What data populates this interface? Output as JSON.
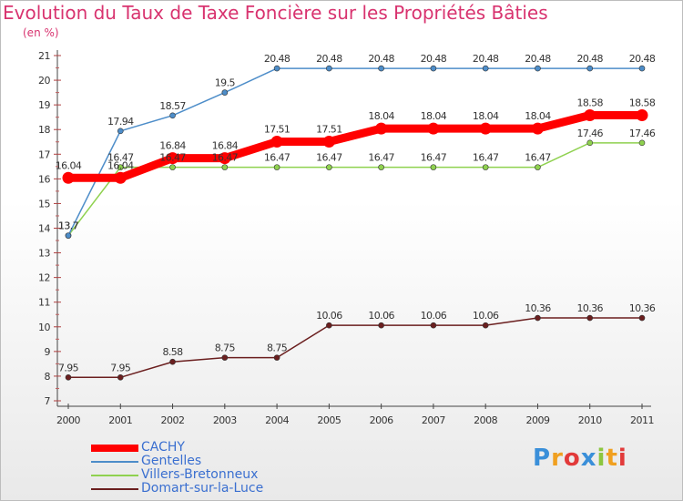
{
  "chart_data": {
    "type": "line",
    "title": "Evolution du Taux de Taxe Foncière sur les Propriétés Bâties",
    "subtitle": "(en %)",
    "x": [
      "2000",
      "2001",
      "2002",
      "2003",
      "2004",
      "2005",
      "2006",
      "2007",
      "2008",
      "2009",
      "2010",
      "2011"
    ],
    "ylim": [
      7,
      21
    ],
    "yticks": [
      7,
      8,
      9,
      10,
      11,
      12,
      13,
      14,
      15,
      16,
      17,
      18,
      19,
      20,
      21
    ],
    "grid": false,
    "legend_position": "bottom-left",
    "series": [
      {
        "name": "CACHY",
        "color": "#ff0000",
        "values": [
          16.04,
          16.04,
          16.84,
          16.84,
          17.51,
          17.51,
          18.04,
          18.04,
          18.04,
          18.04,
          18.58,
          18.58
        ],
        "labels": [
          "16.04",
          "16.04",
          "16.84",
          "16.84",
          "17.51",
          "17.51",
          "18.04",
          "18.04",
          "18.04",
          "18.04",
          "18.58",
          "18.58"
        ]
      },
      {
        "name": "Gentelles",
        "color": "#4d8dc9",
        "values": [
          13.7,
          17.94,
          18.57,
          19.5,
          20.48,
          20.48,
          20.48,
          20.48,
          20.48,
          20.48,
          20.48,
          20.48
        ],
        "labels": [
          "13.7",
          "17.94",
          "18.57",
          "19.5",
          "20.48",
          "20.48",
          "20.48",
          "20.48",
          "20.48",
          "20.48",
          "20.48",
          "20.48"
        ]
      },
      {
        "name": "Villers-Bretonneux",
        "color": "#8fd14f",
        "values": [
          13.7,
          16.47,
          16.47,
          16.47,
          16.47,
          16.47,
          16.47,
          16.47,
          16.47,
          16.47,
          17.46,
          17.46
        ],
        "labels": [
          "13.7",
          "16.47",
          "16.47",
          "16.47",
          "16.47",
          "16.47",
          "16.47",
          "16.47",
          "16.47",
          "16.47",
          "17.46",
          "17.46"
        ]
      },
      {
        "name": "Domart-sur-la-Luce",
        "color": "#6b1f1f",
        "values": [
          7.95,
          7.95,
          8.58,
          8.75,
          8.75,
          10.06,
          10.06,
          10.06,
          10.06,
          10.36,
          10.36,
          10.36
        ],
        "labels": [
          "7.95",
          "7.95",
          "8.58",
          "8.75",
          "8.75",
          "10.06",
          "10.06",
          "10.06",
          "10.06",
          "10.36",
          "10.36",
          "10.36"
        ]
      }
    ]
  },
  "logo": {
    "letters": [
      "P",
      "r",
      "o",
      "x",
      "i",
      "t",
      "i"
    ],
    "colors": [
      "#3a8fd9",
      "#f0a020",
      "#e23a3a",
      "#3a8fd9",
      "#8cc63f",
      "#f0a020",
      "#e23a3a"
    ]
  }
}
